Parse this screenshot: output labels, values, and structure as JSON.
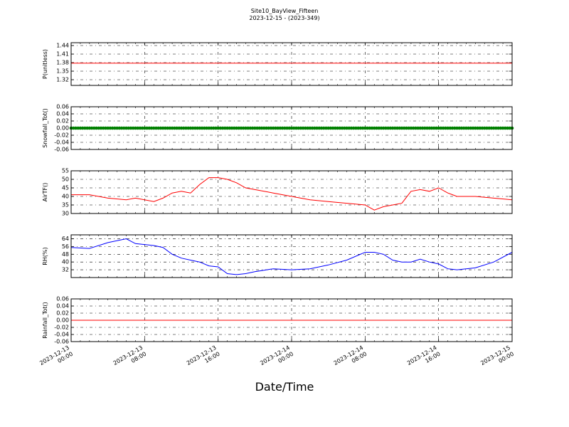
{
  "figure": {
    "title": "Site10_BayView_Fifteen",
    "subtitle": "2023-12-15 - (2023-349)",
    "xlabel": "Date/Time"
  },
  "colors": {
    "p": "#ff0000",
    "snow": "#008000",
    "airtf": "#ff0000",
    "rh": "#0000ff",
    "rain": "#ff0000"
  },
  "chart_data": [
    {
      "type": "line",
      "ylabel": "P(unitless)",
      "ylim": [
        1.3,
        1.45
      ],
      "yticks": [
        1.32,
        1.35,
        1.38,
        1.41,
        1.44
      ],
      "ytick_labels": [
        "1.32",
        "1.35",
        "1.38",
        "1.41",
        "1.44"
      ],
      "grid": true,
      "x": [
        "2023-12-13 00:00",
        "2023-12-15 00:00"
      ],
      "y": [
        1.378,
        1.378
      ]
    },
    {
      "type": "scatter",
      "ylabel": "Snowfall_Tot()",
      "ylim": [
        -0.06,
        0.06
      ],
      "yticks": [
        -0.06,
        -0.04,
        -0.02,
        0.0,
        0.02,
        0.04,
        0.06
      ],
      "ytick_labels": [
        "-0.06",
        "-0.04",
        "-0.02",
        "0.00",
        "0.02",
        "0.04",
        "0.06"
      ],
      "grid": true,
      "x_range": [
        "2023-12-13 00:00",
        "2023-12-15 00:00"
      ],
      "value": 0.0
    },
    {
      "type": "line",
      "ylabel": "AirTF()",
      "ylim": [
        30,
        55
      ],
      "yticks": [
        30,
        35,
        40,
        45,
        50,
        55
      ],
      "ytick_labels": [
        "30",
        "35",
        "40",
        "45",
        "50",
        "55"
      ],
      "grid": true,
      "x": [
        "2023-12-13 00:00",
        "2023-12-13 02:00",
        "2023-12-13 04:00",
        "2023-12-13 06:00",
        "2023-12-13 07:00",
        "2023-12-13 08:00",
        "2023-12-13 09:00",
        "2023-12-13 10:00",
        "2023-12-13 11:00",
        "2023-12-13 12:00",
        "2023-12-13 13:00",
        "2023-12-13 14:00",
        "2023-12-13 15:00",
        "2023-12-13 16:00",
        "2023-12-13 17:00",
        "2023-12-13 18:00",
        "2023-12-13 19:00",
        "2023-12-13 20:00",
        "2023-12-13 22:00",
        "2023-12-14 00:00",
        "2023-12-14 02:00",
        "2023-12-14 04:00",
        "2023-12-14 06:00",
        "2023-12-14 08:00",
        "2023-12-14 09:00",
        "2023-12-14 10:00",
        "2023-12-14 11:00",
        "2023-12-14 12:00",
        "2023-12-14 13:00",
        "2023-12-14 14:00",
        "2023-12-14 15:00",
        "2023-12-14 16:00",
        "2023-12-14 17:00",
        "2023-12-14 18:00",
        "2023-12-14 20:00",
        "2023-12-14 22:00",
        "2023-12-15 00:00"
      ],
      "y": [
        41,
        41,
        39,
        38,
        39,
        38,
        37,
        39,
        42,
        43,
        42,
        47,
        51,
        51,
        50,
        48,
        45,
        44,
        42,
        40,
        38,
        37,
        36,
        35,
        32,
        34,
        35,
        36,
        43,
        44,
        43,
        45,
        42,
        40,
        40,
        39,
        38
      ]
    },
    {
      "type": "line",
      "ylabel": "RH(%)",
      "ylim": [
        24,
        68
      ],
      "yticks": [
        32,
        40,
        48,
        56,
        64
      ],
      "ytick_labels": [
        "32",
        "40",
        "48",
        "56",
        "64"
      ],
      "grid": true,
      "x": [
        "2023-12-13 00:00",
        "2023-12-13 02:00",
        "2023-12-13 04:00",
        "2023-12-13 06:00",
        "2023-12-13 07:00",
        "2023-12-13 08:00",
        "2023-12-13 09:00",
        "2023-12-13 10:00",
        "2023-12-13 11:00",
        "2023-12-13 12:00",
        "2023-12-13 13:00",
        "2023-12-13 14:00",
        "2023-12-13 15:00",
        "2023-12-13 16:00",
        "2023-12-13 17:00",
        "2023-12-13 18:00",
        "2023-12-13 19:00",
        "2023-12-13 20:00",
        "2023-12-13 22:00",
        "2023-12-14 00:00",
        "2023-12-14 02:00",
        "2023-12-14 04:00",
        "2023-12-14 06:00",
        "2023-12-14 08:00",
        "2023-12-14 09:00",
        "2023-12-14 10:00",
        "2023-12-14 11:00",
        "2023-12-14 12:00",
        "2023-12-14 13:00",
        "2023-12-14 14:00",
        "2023-12-14 15:00",
        "2023-12-14 16:00",
        "2023-12-14 17:00",
        "2023-12-14 18:00",
        "2023-12-14 20:00",
        "2023-12-14 22:00",
        "2023-12-15 00:00"
      ],
      "y": [
        55,
        54,
        60,
        64,
        59,
        58,
        57,
        55,
        48,
        44,
        42,
        40,
        36,
        35,
        28,
        27,
        28,
        30,
        33,
        32,
        33,
        37,
        42,
        50,
        50,
        48,
        42,
        40,
        40,
        43,
        40,
        38,
        33,
        32,
        34,
        40,
        50
      ]
    },
    {
      "type": "line",
      "ylabel": "Rainfall_Tot()",
      "ylim": [
        -0.06,
        0.06
      ],
      "yticks": [
        -0.06,
        -0.04,
        -0.02,
        0.0,
        0.02,
        0.04,
        0.06
      ],
      "ytick_labels": [
        "-0.06",
        "-0.04",
        "-0.02",
        "0.00",
        "0.02",
        "0.04",
        "0.06"
      ],
      "grid": true,
      "x": [
        "2023-12-13 00:00",
        "2023-12-15 00:00"
      ],
      "y": [
        0.0,
        0.0
      ]
    }
  ],
  "x_axis": {
    "range": [
      "2023-12-13 00:00",
      "2023-12-15 00:00"
    ],
    "ticks": [
      "2023-12-13 00:00",
      "2023-12-13 08:00",
      "2023-12-13 16:00",
      "2023-12-14 00:00",
      "2023-12-14 08:00",
      "2023-12-14 16:00",
      "2023-12-15 00:00"
    ],
    "tick_labels": [
      [
        "2023-12-13",
        "00:00"
      ],
      [
        "2023-12-13",
        "08:00"
      ],
      [
        "2023-12-13",
        "16:00"
      ],
      [
        "2023-12-14",
        "00:00"
      ],
      [
        "2023-12-14",
        "08:00"
      ],
      [
        "2023-12-14",
        "16:00"
      ],
      [
        "2023-12-15",
        "00:00"
      ]
    ]
  }
}
